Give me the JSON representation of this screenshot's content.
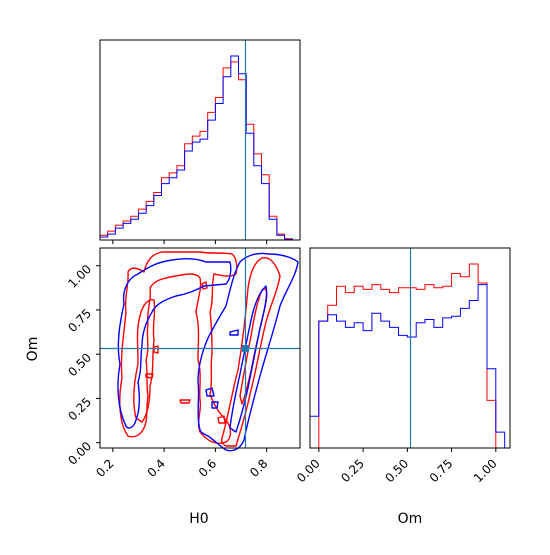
{
  "chart_data": {
    "type": "corner",
    "parameters": [
      "H0",
      "Om"
    ],
    "truth": {
      "H0": 0.74,
      "Om": 0.52
    },
    "colors": {
      "series_a": "#ff0000",
      "series_b": "#0000ff",
      "truth": "#1f77b4"
    },
    "grid": false,
    "panels": {
      "h0_hist": {
        "type": "step-histogram",
        "xlim": [
          0.15,
          0.93
        ],
        "bin_edges": [
          0.15,
          0.18,
          0.21,
          0.24,
          0.27,
          0.3,
          0.33,
          0.36,
          0.39,
          0.42,
          0.45,
          0.48,
          0.51,
          0.54,
          0.57,
          0.6,
          0.63,
          0.66,
          0.69,
          0.72,
          0.75,
          0.78,
          0.81,
          0.84,
          0.87,
          0.9
        ],
        "series": [
          {
            "color": "red",
            "values": [
              0.8,
              1.5,
              2.5,
              3.2,
              4.0,
              5.2,
              6.5,
              8.0,
              10.5,
              11.3,
              12.5,
              16.2,
              17.5,
              18.3,
              21.5,
              24.0,
              29.0,
              30.0,
              27.0,
              19.5,
              14.5,
              11.0,
              4.0,
              1.0,
              0.2
            ]
          },
          {
            "color": "blue",
            "values": [
              0.5,
              1.0,
              2.0,
              2.8,
              3.5,
              4.5,
              5.8,
              7.5,
              9.5,
              10.5,
              11.8,
              15.0,
              16.5,
              17.0,
              20.2,
              23.0,
              27.5,
              31.0,
              28.0,
              18.0,
              12.5,
              9.5,
              3.5,
              0.8,
              0.1
            ]
          }
        ],
        "xticks": [
          "",
          "",
          "",
          ""
        ]
      },
      "h0_om_contour": {
        "type": "contour",
        "xlim": [
          0.15,
          0.93
        ],
        "ylim": [
          -0.03,
          1.1
        ],
        "xticks": [
          0.2,
          0.4,
          0.6,
          0.8
        ],
        "xticklabels": [
          "0.2",
          "0.4",
          "0.6",
          "0.8"
        ],
        "yticks": [
          0.0,
          0.25,
          0.5,
          0.75,
          1.0
        ],
        "yticklabels": [
          "0.00",
          "0.25",
          "0.50",
          "0.75",
          "1.00"
        ],
        "xlabel": "H0",
        "ylabel": "Om"
      },
      "om_hist": {
        "type": "step-histogram",
        "xlim": [
          -0.05,
          1.08
        ],
        "bin_edges": [
          -0.05,
          0.0,
          0.05,
          0.1,
          0.15,
          0.2,
          0.25,
          0.3,
          0.35,
          0.4,
          0.45,
          0.5,
          0.55,
          0.6,
          0.65,
          0.7,
          0.75,
          0.8,
          0.85,
          0.9,
          0.95,
          1.0,
          1.05
        ],
        "series": [
          {
            "color": "red",
            "values": [
              0,
              0.8,
              0.9,
              1.02,
              0.98,
              1.02,
              1.0,
              1.03,
              1.0,
              0.98,
              1.01,
              1.01,
              1.0,
              1.03,
              1.01,
              1.02,
              1.1,
              1.08,
              1.16,
              1.04,
              0.3,
              0
            ]
          },
          {
            "color": "blue",
            "values": [
              0.2,
              0.8,
              0.84,
              0.8,
              0.76,
              0.79,
              0.74,
              0.85,
              0.8,
              0.76,
              0.71,
              0.7,
              0.79,
              0.81,
              0.76,
              0.82,
              0.83,
              0.88,
              0.93,
              1.03,
              0.5,
              0.1
            ]
          }
        ],
        "xticks": [
          0.0,
          0.25,
          0.5,
          0.75,
          1.0
        ],
        "xticklabels": [
          "0.00",
          "0.25",
          "0.50",
          "0.75",
          "1.00"
        ],
        "xlabel": "Om"
      }
    }
  }
}
